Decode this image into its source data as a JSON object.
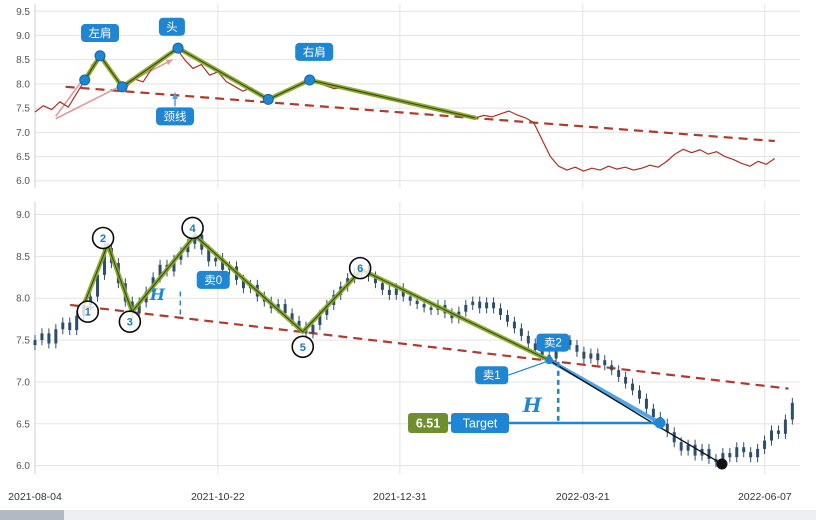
{
  "colors": {
    "accent_blue": "#1e86d2",
    "light_blue": "#3d9ce8",
    "zigzag_green": "#84a821",
    "zigzag_core": "#33401f",
    "price_red": "#a93226",
    "trend_red": "#b03a2e",
    "pink_arrow": "#df9b9b",
    "candle": "#2e4d6d",
    "target_green": "#6f8f2f",
    "grid": "#e3e3e3",
    "axis": "#cfcfcf",
    "black": "#111111"
  },
  "chart_data": [
    {
      "name": "price-overview-line-chart",
      "type": "line",
      "title": "",
      "xlabel": "",
      "ylabel": "",
      "ylim": [
        5.85,
        9.65
      ],
      "yticks": [
        9.5,
        9.0,
        8.5,
        8.0,
        7.5,
        7.0,
        6.5,
        6.0
      ],
      "grid": true,
      "t_end": 0.967,
      "values": [
        7.42,
        7.55,
        7.47,
        7.63,
        7.52,
        7.8,
        8.08,
        8.3,
        8.58,
        8.32,
        8.05,
        7.94,
        8.1,
        8.04,
        8.3,
        8.45,
        8.6,
        8.74,
        8.5,
        8.32,
        8.4,
        8.18,
        8.25,
        8.05,
        7.95,
        7.85,
        7.92,
        7.78,
        7.68,
        7.74,
        7.85,
        7.92,
        8.0,
        8.08,
        8.02,
        7.96,
        7.9,
        7.93,
        7.86,
        7.82,
        7.78,
        7.74,
        7.7,
        7.66,
        7.62,
        7.58,
        7.54,
        7.5,
        7.46,
        7.43,
        7.39,
        7.35,
        7.32,
        7.3,
        7.35,
        7.32,
        7.38,
        7.44,
        7.36,
        7.3,
        7.2,
        6.85,
        6.5,
        6.3,
        6.22,
        6.28,
        6.2,
        6.26,
        6.22,
        6.3,
        6.24,
        6.28,
        6.22,
        6.26,
        6.32,
        6.28,
        6.4,
        6.55,
        6.65,
        6.58,
        6.64,
        6.55,
        6.6,
        6.5,
        6.44,
        6.36,
        6.3,
        6.4,
        6.34,
        6.46
      ],
      "zigzag": [
        [
          0.065,
          8.08
        ],
        [
          0.085,
          8.58
        ],
        [
          0.114,
          7.94
        ],
        [
          0.187,
          8.74
        ],
        [
          0.305,
          7.68
        ],
        [
          0.359,
          8.08
        ],
        [
          0.575,
          7.3
        ]
      ],
      "dots": [
        [
          0.065,
          8.08
        ],
        [
          0.085,
          8.58
        ],
        [
          0.114,
          7.94
        ],
        [
          0.187,
          8.74
        ],
        [
          0.305,
          7.68
        ],
        [
          0.359,
          8.08
        ]
      ],
      "trendline": {
        "from": [
          0.04,
          7.94
        ],
        "to": [
          0.967,
          6.82
        ]
      },
      "arrows": [
        {
          "from": [
            0.027,
            7.33
          ],
          "to": [
            0.08,
            8.46
          ]
        },
        {
          "from": [
            0.027,
            7.28
          ],
          "to": [
            0.18,
            8.5
          ]
        }
      ],
      "badges": [
        {
          "label": "左肩",
          "name": "left-shoulder",
          "t": 0.085,
          "v": 9.05
        },
        {
          "label": "头",
          "name": "head",
          "t": 0.179,
          "v": 9.18
        },
        {
          "label": "右肩",
          "name": "right-shoulder",
          "t": 0.365,
          "v": 8.66
        },
        {
          "label": "颈线",
          "name": "neckline",
          "t": 0.183,
          "v": 7.33,
          "arrow_up_to": 7.82
        }
      ]
    },
    {
      "name": "candlestick-chart",
      "type": "candlestick",
      "title": "",
      "xlabel": "",
      "ylabel": "",
      "ylim": [
        5.9,
        9.15
      ],
      "yticks": [
        9.0,
        8.5,
        8.0,
        7.5,
        7.0,
        6.5,
        6.0
      ],
      "grid": true,
      "t_end": 0.99,
      "first_open": 7.44,
      "wick": 0.06,
      "closes": [
        7.5,
        7.58,
        7.46,
        7.63,
        7.71,
        7.62,
        7.79,
        7.92,
        8.02,
        8.28,
        8.6,
        8.42,
        8.18,
        7.96,
        7.82,
        7.95,
        8.08,
        8.25,
        8.4,
        8.32,
        8.46,
        8.55,
        8.65,
        8.76,
        8.58,
        8.44,
        8.48,
        8.34,
        8.38,
        8.22,
        8.12,
        8.16,
        8.02,
        7.96,
        7.88,
        7.93,
        7.82,
        7.73,
        7.66,
        7.58,
        7.68,
        7.8,
        7.92,
        8.04,
        8.14,
        8.24,
        8.3,
        8.34,
        8.26,
        8.18,
        8.1,
        8.04,
        8.12,
        8.02,
        7.97,
        7.93,
        7.89,
        7.86,
        7.92,
        7.82,
        7.76,
        7.84,
        7.92,
        7.96,
        7.88,
        7.95,
        7.88,
        7.8,
        7.72,
        7.64,
        7.55,
        7.46,
        7.38,
        7.32,
        7.28,
        7.42,
        7.5,
        7.44,
        7.36,
        7.28,
        7.34,
        7.26,
        7.2,
        7.14,
        7.06,
        6.98,
        6.9,
        6.8,
        6.68,
        6.58,
        6.5,
        6.4,
        6.28,
        6.18,
        6.25,
        6.12,
        6.2,
        6.08,
        6.04,
        6.15,
        6.1,
        6.22,
        6.16,
        6.1,
        6.2,
        6.3,
        6.42,
        6.38,
        6.55,
        6.75
      ],
      "zigzag": [
        [
          0.065,
          7.95
        ],
        [
          0.095,
          8.64
        ],
        [
          0.127,
          7.84
        ],
        [
          0.209,
          8.75
        ],
        [
          0.35,
          7.6
        ],
        [
          0.427,
          8.34
        ],
        [
          0.672,
          7.26
        ]
      ],
      "circles": [
        {
          "label": "1",
          "t": 0.069,
          "v": 7.84
        },
        {
          "label": "2",
          "t": 0.089,
          "v": 8.72
        },
        {
          "label": "3",
          "t": 0.124,
          "v": 7.72
        },
        {
          "label": "4",
          "t": 0.206,
          "v": 8.84
        },
        {
          "label": "5",
          "t": 0.35,
          "v": 7.42
        },
        {
          "label": "6",
          "t": 0.425,
          "v": 8.36
        }
      ],
      "trendline": {
        "from": [
          0.046,
          7.92
        ],
        "to": [
          0.985,
          6.92
        ]
      },
      "sell_badges": [
        {
          "label": "卖0",
          "name": "sell-0",
          "t": 0.233,
          "v": 8.22
        },
        {
          "label": "卖1",
          "name": "sell-1",
          "t": 0.597,
          "v": 7.08,
          "line_to": [
            0.668,
            7.24
          ]
        },
        {
          "label": "卖2",
          "name": "sell-2",
          "t": 0.677,
          "v": 7.47
        }
      ],
      "blue_line": {
        "from": [
          0.672,
          7.26
        ],
        "to": [
          0.817,
          6.51
        ]
      },
      "black_line": [
        [
          0.672,
          7.26
        ],
        [
          0.82,
          6.44
        ],
        [
          0.898,
          6.02
        ]
      ],
      "h_labels": [
        {
          "text": "H",
          "t": 0.16,
          "v": 7.98,
          "size": 16
        },
        {
          "text": "H",
          "t": 0.65,
          "v": 6.64,
          "size": 20
        }
      ],
      "blue_dashes": [
        {
          "t": 0.19,
          "v1": 8.08,
          "v2": 7.8,
          "w": 1.5
        },
        {
          "t": 0.684,
          "v1": 7.24,
          "v2": 6.51,
          "w": 2.5
        }
      ],
      "target_line": {
        "v": 6.51,
        "t1": 0.54,
        "t2": 0.817
      },
      "target": {
        "value": "6.51",
        "label": "Target",
        "t": 0.4876,
        "v": 6.51
      },
      "marker_dots": [
        {
          "t": 0.672,
          "v": 7.26,
          "r": 4,
          "color": "#1e86d2",
          "name": "sell-point-dot"
        },
        {
          "t": 0.817,
          "v": 6.51,
          "r": 5.5,
          "color": "#1e86d2",
          "name": "target-dot"
        },
        {
          "t": 0.898,
          "v": 6.02,
          "r": 5.5,
          "color": "#111111",
          "name": "bottom-dot"
        }
      ],
      "xticks": [
        {
          "label": "2021-08-04",
          "t": 0.0
        },
        {
          "label": "2021-10-22",
          "t": 0.239
        },
        {
          "label": "2021-12-31",
          "t": 0.477
        },
        {
          "label": "2022-03-21",
          "t": 0.716
        },
        {
          "label": "2022-06-07",
          "t": 0.954
        }
      ]
    }
  ]
}
